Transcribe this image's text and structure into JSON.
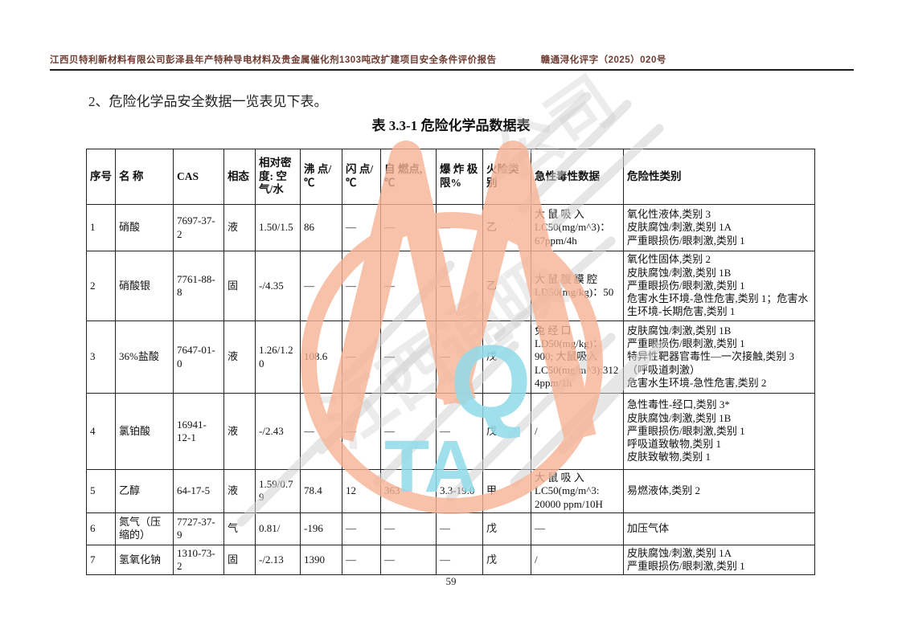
{
  "header": {
    "title": "江西贝特利新材料有限公司彭泽县年产特种导电材料及贵金属催化剂1303吨改扩建项目安全条件评价报告",
    "doc_no": "赣通浔化评字（2025）020号"
  },
  "section": {
    "heading": "2、危险化学品安全数据一览表见下表。"
  },
  "table": {
    "title": "表 3.3-1  危险化学品数据表",
    "columns": [
      "序号",
      "名  称",
      "CAS",
      "相态",
      "相对密度: 空气/水",
      "沸 点/℃",
      "闪 点/℃",
      "自  燃点, ℃",
      "爆 炸 极限%",
      "火险类别",
      "急性毒性数据",
      "危险性类别"
    ],
    "rows": [
      [
        "1",
        "硝酸",
        "7697-37-2",
        "液",
        "1.50/1.5",
        "86",
        "—",
        "—",
        "—",
        "乙",
        "大 鼠 吸 入 LC50(mg/m^3)：67ppm/4h",
        "氧化性液体,类别 3\n皮肤腐蚀/刺激,类别 1A\n严重眼损伤/眼刺激,类别 1"
      ],
      [
        "2",
        "硝酸银",
        "7761-88-8",
        "固",
        "-/4.35",
        "—",
        "—",
        "—",
        "—",
        "乙",
        "大 鼠 腹 膜 腔 LD50(mg/kg)：50",
        "氧化性固体,类别 2\n皮肤腐蚀/刺激,类别 1B\n严重眼损伤/眼刺激,类别 1\n危害水生环境-急性危害,类别 1；危害水生环境-长期危害,类别 1"
      ],
      [
        "3",
        "36%盐酸",
        "7647-01-0",
        "液",
        "1.26/1.20",
        "108.6",
        "—",
        "—",
        "—",
        "戊",
        "兔 经 口 LD50(mg/kg)：900; 大鼠吸入 LC50(mg/m^3):3124ppm/1h",
        "皮肤腐蚀/刺激,类别 1B\n严重眼损伤/眼刺激,类别 1\n特异性靶器官毒性—一次接触,类别 3（呼吸道刺激）\n危害水生环境-急性危害,类别 2"
      ],
      [
        "4",
        "氯铂酸",
        "16941-12-1",
        "液",
        "-/2.43",
        "—",
        "—",
        "—",
        "—",
        "戊",
        "/",
        "急性毒性-经口,类别 3*\n皮肤腐蚀/刺激,类别 1B\n严重眼损伤/眼刺激,类别 1\n呼吸道致敏物,类别 1\n皮肤致敏物,类别 1"
      ],
      [
        "5",
        "乙醇",
        "64-17-5",
        "液",
        "1.59/0.79",
        "78.4",
        "12",
        "363",
        "3.3-19.0",
        "甲",
        "大 鼠 吸 入 LC50(mg/m^3: 20000 ppm/10H",
        "易燃液体,类别 2"
      ],
      [
        "6",
        "氮气（压缩的）",
        "7727-37-9",
        "气",
        "0.81/",
        "-196",
        "—",
        "—",
        "—",
        "戊",
        "—",
        "加压气体"
      ],
      [
        "7",
        "氢氧化钠",
        "1310-73-2",
        "固",
        "-/2.13",
        "1390",
        "—",
        "—",
        "—",
        "戊",
        "/",
        "皮肤腐蚀/刺激,类别 1A\n严重眼损伤/眼刺激,类别 1"
      ]
    ]
  },
  "page": {
    "number": "59"
  },
  "watermark": {
    "orange": "#f5b295",
    "cyan": "#8fdbe9",
    "gray": "#cfcfcf",
    "letters_q": "Q",
    "letters_ta": "TA"
  }
}
